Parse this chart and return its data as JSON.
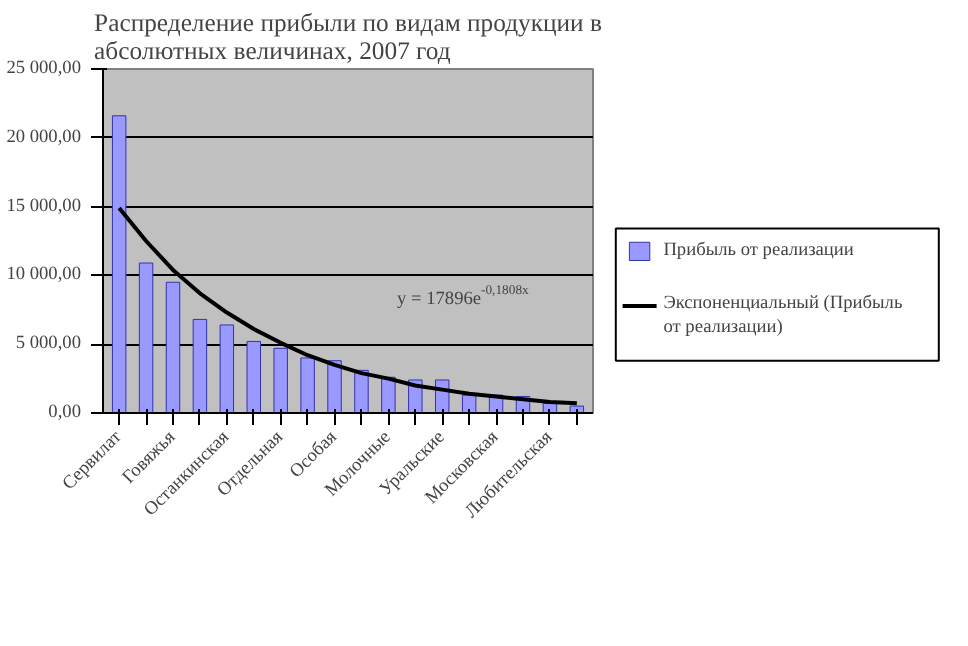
{
  "chart_data": {
    "type": "bar",
    "title": "Распределение прибыли по видам продукции в абсолютных величинах, 2007 год",
    "categories": [
      "Сервилат",
      null,
      "Говяжья",
      null,
      "Останкинская",
      null,
      "Отдельная",
      null,
      "Особая",
      null,
      "Молочные",
      null,
      "Уральские",
      null,
      "Московская",
      null,
      "Любительская",
      null
    ],
    "series": [
      {
        "name": "Прибыль от реализации",
        "color": "#9999ff",
        "values": [
          21600,
          10900,
          9500,
          6800,
          6400,
          5200,
          4700,
          4000,
          3800,
          3100,
          2600,
          2400,
          2400,
          1300,
          1300,
          1200,
          700,
          500
        ]
      },
      {
        "name": "Экспоненциальный (Прибыль от реализации)",
        "type": "line",
        "color": "#000000",
        "values": [
          14900,
          12500,
          10400,
          8700,
          7300,
          6100,
          5100,
          4200,
          3500,
          2900,
          2500,
          2000,
          1700,
          1400,
          1200,
          1000,
          800,
          700
        ]
      }
    ],
    "annotations": [
      "y = 17896e$^{-0,1808x}$"
    ],
    "ylim": [
      0,
      25000
    ],
    "yticks": [
      {
        "value": 0,
        "label": "0,00"
      },
      {
        "value": 5000,
        "label": "5 000,00"
      },
      {
        "value": 10000,
        "label": "10 000,00"
      },
      {
        "value": 15000,
        "label": "15 000,00"
      },
      {
        "value": 20000,
        "label": "20 000,00"
      },
      {
        "value": 25000,
        "label": "25 000,00"
      }
    ],
    "grid": "y",
    "legend": "right"
  }
}
